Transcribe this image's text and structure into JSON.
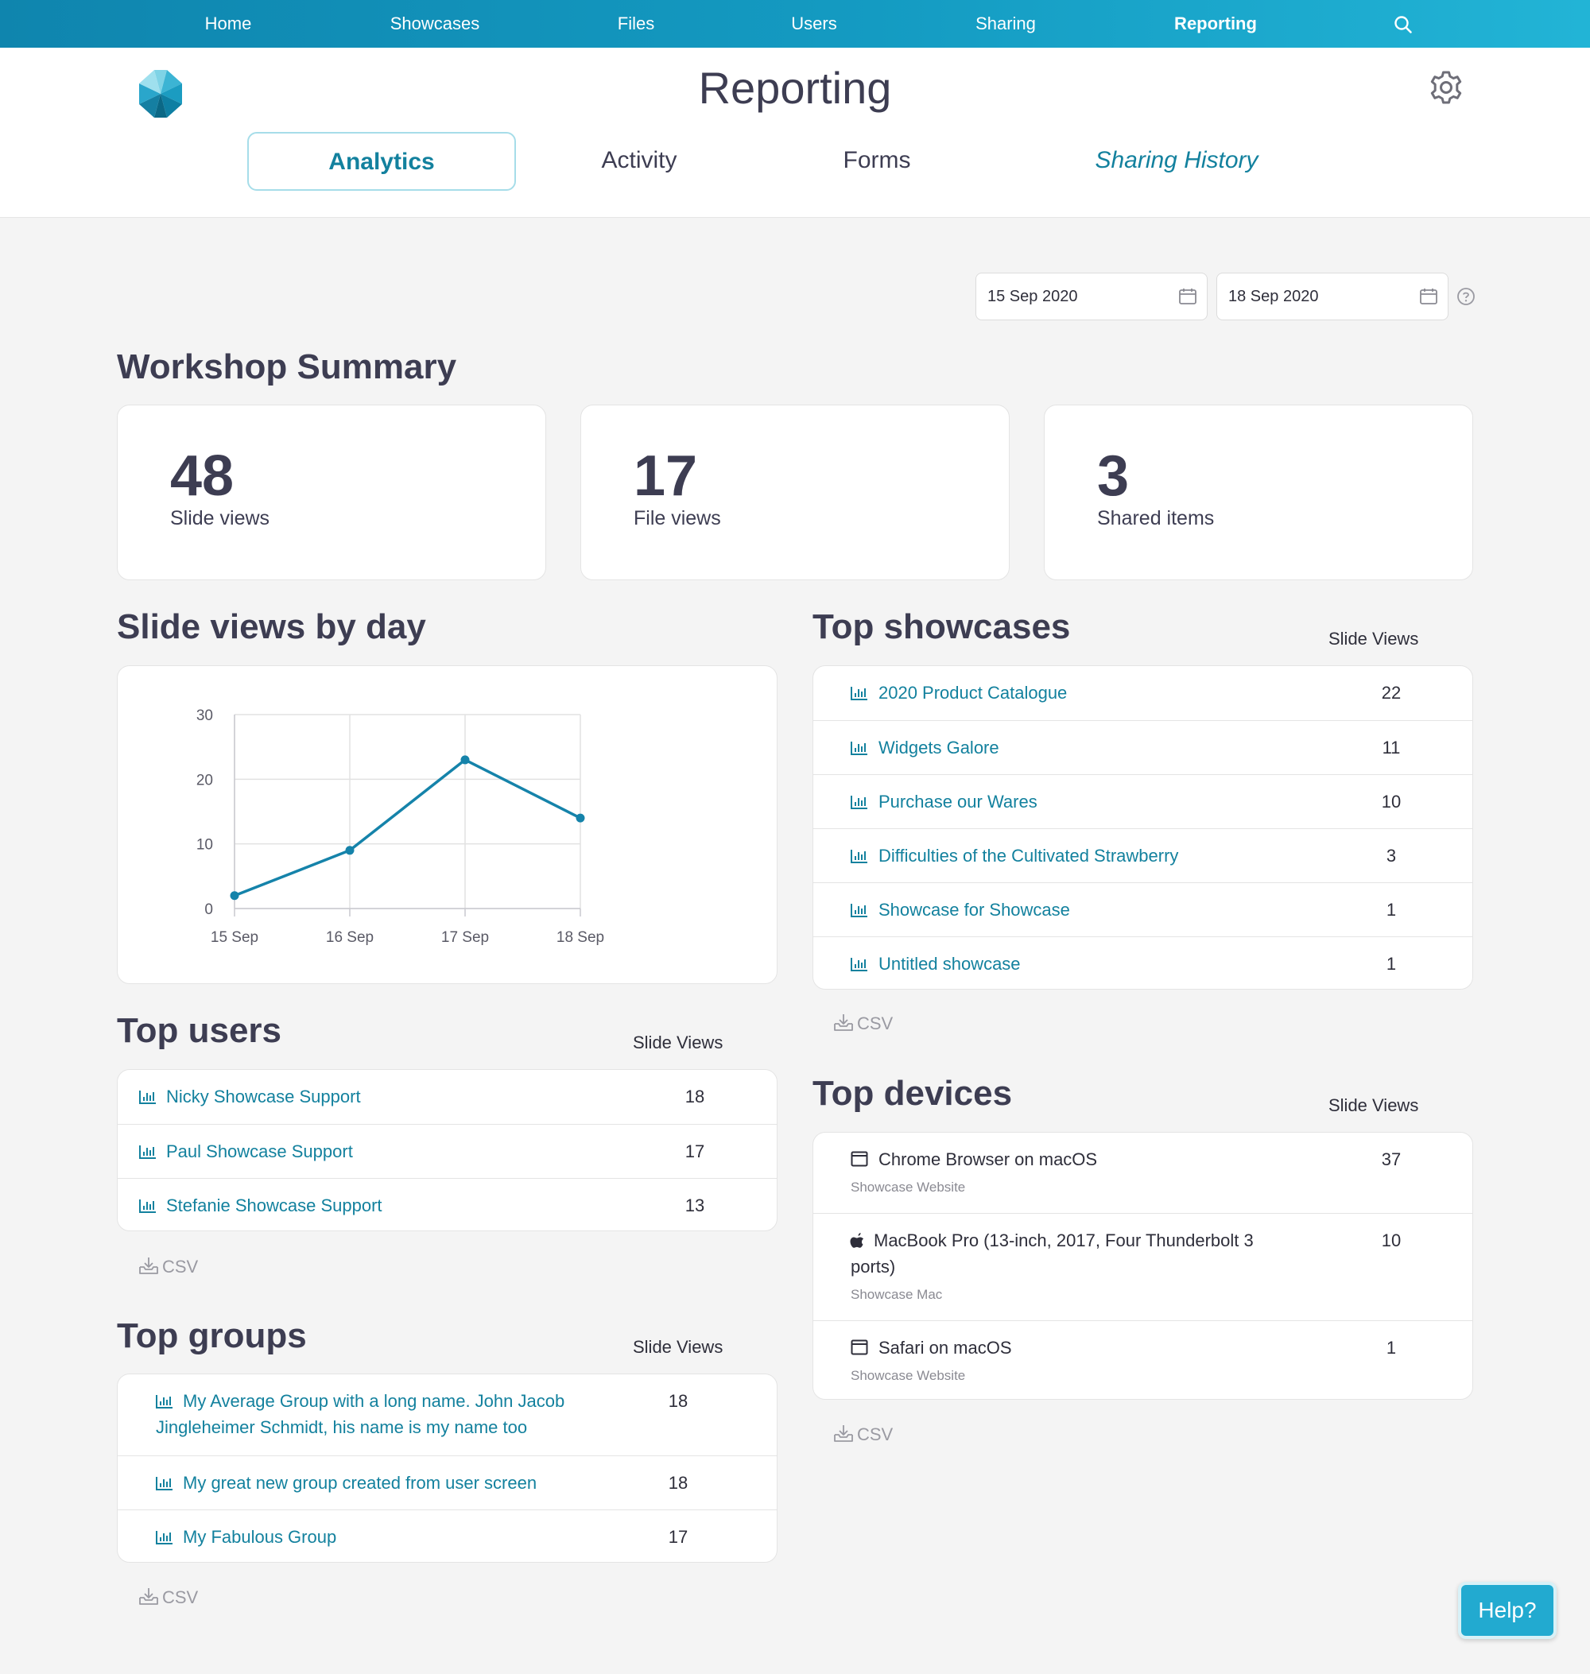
{
  "nav": {
    "items": [
      "Home",
      "Showcases",
      "Files",
      "Users",
      "Sharing",
      "Reporting"
    ],
    "active": "Reporting",
    "search_icon": "search-icon"
  },
  "header": {
    "title": "Reporting",
    "logo_icon": "logo-icon",
    "settings_icon": "gear-icon",
    "tabs": [
      "Analytics",
      "Activity",
      "Forms",
      "Sharing History"
    ],
    "active_tab": "Analytics"
  },
  "date_range": {
    "start": "15 Sep 2020",
    "end": "18 Sep 2020",
    "calendar_icon": "calendar-icon",
    "help_icon": "help-circle-icon"
  },
  "summary": {
    "title": "Workshop Summary",
    "stats": [
      {
        "value": "48",
        "label": "Slide views"
      },
      {
        "value": "17",
        "label": "File views"
      },
      {
        "value": "3",
        "label": "Shared items"
      }
    ]
  },
  "slide_views_by_day": {
    "title": "Slide views by day"
  },
  "chart_data": {
    "type": "line",
    "categories": [
      "15 Sep",
      "16 Sep",
      "17 Sep",
      "18 Sep"
    ],
    "values": [
      2,
      9,
      23,
      14
    ],
    "ylim": [
      0,
      30
    ],
    "yticks": [
      "0",
      "10",
      "20",
      "30"
    ],
    "grid": true,
    "color": "#1583aa"
  },
  "top_showcases": {
    "title": "Top showcases",
    "column": "Slide Views",
    "rows": [
      {
        "name": "2020 Product Catalogue",
        "views": "22"
      },
      {
        "name": "Widgets Galore",
        "views": "11"
      },
      {
        "name": "Purchase our Wares",
        "views": "10"
      },
      {
        "name": "Difficulties of the Cultivated Strawberry",
        "views": "3"
      },
      {
        "name": "Showcase for Showcase",
        "views": "1"
      },
      {
        "name": "Untitled showcase",
        "views": "1"
      }
    ],
    "csv": "CSV"
  },
  "top_users": {
    "title": "Top users",
    "column": "Slide Views",
    "rows": [
      {
        "name": "Nicky Showcase Support",
        "views": "18"
      },
      {
        "name": "Paul Showcase Support",
        "views": "17"
      },
      {
        "name": "Stefanie Showcase Support",
        "views": "13"
      }
    ],
    "csv": "CSV"
  },
  "top_devices": {
    "title": "Top devices",
    "column": "Slide Views",
    "rows": [
      {
        "name": "Chrome Browser on macOS",
        "sub": "Showcase Website",
        "views": "37",
        "icon": "browser-window-icon"
      },
      {
        "name_line1": "MacBook Pro (13-inch, 2017, Four Thunderbolt 3",
        "name_line2": "ports)",
        "sub": "Showcase Mac",
        "views": "10",
        "icon": "apple-icon"
      },
      {
        "name": "Safari on macOS",
        "sub": "Showcase Website",
        "views": "1",
        "icon": "browser-window-icon"
      }
    ],
    "csv": "CSV"
  },
  "top_groups": {
    "title": "Top groups",
    "column": "Slide Views",
    "rows": [
      {
        "name_line1": "My Average Group with a long name. John Jacob",
        "name_line2": "Jingleheimer Schmidt, his name is my name too",
        "views": "18"
      },
      {
        "name": "My great new group created from user screen",
        "views": "18"
      },
      {
        "name": "My Fabulous Group",
        "views": "17"
      }
    ],
    "csv": "CSV"
  },
  "help_button": "Help?",
  "colors": {
    "accent": "#13819e",
    "nav_start": "#0f85ae",
    "nav_end": "#22b4d6",
    "help": "#22aad0"
  }
}
